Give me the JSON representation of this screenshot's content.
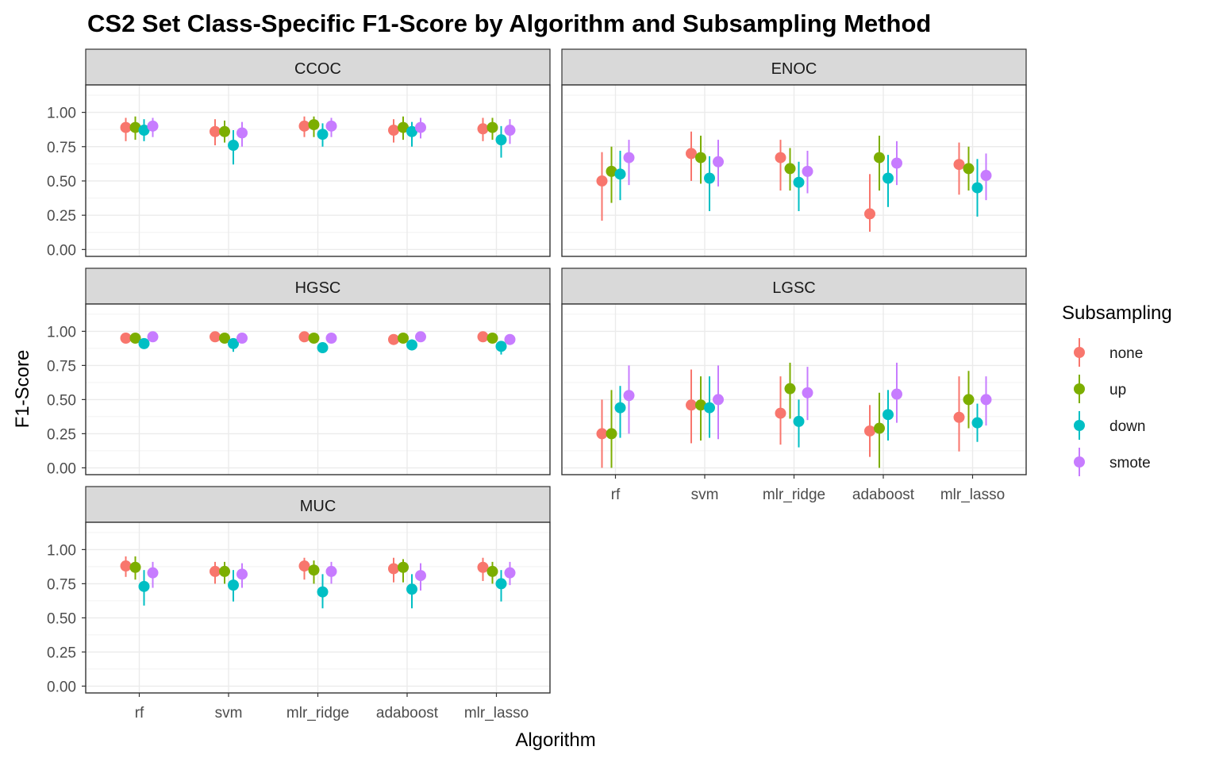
{
  "chart_data": {
    "type": "scatter",
    "title": "CS2 Set Class-Specific F1-Score by Algorithm and Subsampling Method",
    "xlabel": "Algorithm",
    "ylabel": "F1-Score",
    "categories": [
      "rf",
      "svm",
      "mlr_ridge",
      "adaboost",
      "mlr_lasso"
    ],
    "ylim": [
      0,
      1
    ],
    "y_ticks": [
      "0.00",
      "0.25",
      "0.50",
      "0.75",
      "1.00"
    ],
    "grid": true,
    "legend": {
      "title": "Subsampling",
      "position": "right",
      "items": [
        {
          "name": "none",
          "color": "#F8766D"
        },
        {
          "name": "up",
          "color": "#7CAE00"
        },
        {
          "name": "down",
          "color": "#00BFC4"
        },
        {
          "name": "smote",
          "color": "#C77CFF"
        }
      ]
    },
    "panels": [
      {
        "name": "CCOC",
        "series": [
          {
            "name": "none",
            "points": [
              [
                0.89,
                0.79,
                0.96
              ],
              [
                0.86,
                0.76,
                0.95
              ],
              [
                0.9,
                0.82,
                0.97
              ],
              [
                0.87,
                0.78,
                0.95
              ],
              [
                0.88,
                0.79,
                0.96
              ]
            ]
          },
          {
            "name": "up",
            "points": [
              [
                0.89,
                0.8,
                0.97
              ],
              [
                0.86,
                0.78,
                0.94
              ],
              [
                0.91,
                0.82,
                0.97
              ],
              [
                0.89,
                0.8,
                0.97
              ],
              [
                0.89,
                0.8,
                0.96
              ]
            ]
          },
          {
            "name": "down",
            "points": [
              [
                0.87,
                0.79,
                0.95
              ],
              [
                0.76,
                0.62,
                0.87
              ],
              [
                0.84,
                0.75,
                0.92
              ],
              [
                0.86,
                0.75,
                0.93
              ],
              [
                0.8,
                0.67,
                0.9
              ]
            ]
          },
          {
            "name": "smote",
            "points": [
              [
                0.9,
                0.82,
                0.96
              ],
              [
                0.85,
                0.75,
                0.93
              ],
              [
                0.9,
                0.82,
                0.96
              ],
              [
                0.89,
                0.81,
                0.96
              ],
              [
                0.87,
                0.77,
                0.95
              ]
            ]
          }
        ]
      },
      {
        "name": "ENOC",
        "series": [
          {
            "name": "none",
            "points": [
              [
                0.5,
                0.21,
                0.71
              ],
              [
                0.7,
                0.5,
                0.86
              ],
              [
                0.67,
                0.43,
                0.8
              ],
              [
                0.26,
                0.13,
                0.55
              ],
              [
                0.62,
                0.4,
                0.78
              ]
            ]
          },
          {
            "name": "up",
            "points": [
              [
                0.57,
                0.34,
                0.75
              ],
              [
                0.67,
                0.48,
                0.83
              ],
              [
                0.59,
                0.43,
                0.74
              ],
              [
                0.67,
                0.43,
                0.83
              ],
              [
                0.59,
                0.43,
                0.75
              ]
            ]
          },
          {
            "name": "down",
            "points": [
              [
                0.55,
                0.36,
                0.72
              ],
              [
                0.52,
                0.28,
                0.68
              ],
              [
                0.49,
                0.28,
                0.64
              ],
              [
                0.52,
                0.31,
                0.69
              ],
              [
                0.45,
                0.24,
                0.66
              ]
            ]
          },
          {
            "name": "smote",
            "points": [
              [
                0.67,
                0.47,
                0.8
              ],
              [
                0.64,
                0.46,
                0.8
              ],
              [
                0.57,
                0.41,
                0.72
              ],
              [
                0.63,
                0.47,
                0.79
              ],
              [
                0.54,
                0.36,
                0.7
              ]
            ]
          }
        ]
      },
      {
        "name": "HGSC",
        "series": [
          {
            "name": "none",
            "points": [
              [
                0.95,
                0.93,
                0.97
              ],
              [
                0.96,
                0.93,
                0.98
              ],
              [
                0.96,
                0.94,
                0.98
              ],
              [
                0.94,
                0.91,
                0.96
              ],
              [
                0.96,
                0.94,
                0.98
              ]
            ]
          },
          {
            "name": "up",
            "points": [
              [
                0.95,
                0.93,
                0.97
              ],
              [
                0.95,
                0.93,
                0.97
              ],
              [
                0.95,
                0.93,
                0.97
              ],
              [
                0.95,
                0.93,
                0.97
              ],
              [
                0.95,
                0.93,
                0.97
              ]
            ]
          },
          {
            "name": "down",
            "points": [
              [
                0.91,
                0.88,
                0.94
              ],
              [
                0.91,
                0.85,
                0.93
              ],
              [
                0.88,
                0.84,
                0.92
              ],
              [
                0.9,
                0.87,
                0.94
              ],
              [
                0.89,
                0.83,
                0.92
              ]
            ]
          },
          {
            "name": "smote",
            "points": [
              [
                0.96,
                0.93,
                0.97
              ],
              [
                0.95,
                0.93,
                0.97
              ],
              [
                0.95,
                0.93,
                0.97
              ],
              [
                0.96,
                0.93,
                0.98
              ],
              [
                0.94,
                0.92,
                0.96
              ]
            ]
          }
        ]
      },
      {
        "name": "LGSC",
        "series": [
          {
            "name": "none",
            "points": [
              [
                0.25,
                0.0,
                0.5
              ],
              [
                0.46,
                0.18,
                0.72
              ],
              [
                0.4,
                0.17,
                0.67
              ],
              [
                0.27,
                0.08,
                0.46
              ],
              [
                0.37,
                0.12,
                0.67
              ]
            ]
          },
          {
            "name": "up",
            "points": [
              [
                0.25,
                0.0,
                0.57
              ],
              [
                0.46,
                0.2,
                0.67
              ],
              [
                0.58,
                0.36,
                0.77
              ],
              [
                0.29,
                0.0,
                0.55
              ],
              [
                0.5,
                0.29,
                0.71
              ]
            ]
          },
          {
            "name": "down",
            "points": [
              [
                0.44,
                0.22,
                0.6
              ],
              [
                0.44,
                0.22,
                0.67
              ],
              [
                0.34,
                0.15,
                0.5
              ],
              [
                0.39,
                0.2,
                0.57
              ],
              [
                0.33,
                0.19,
                0.47
              ]
            ]
          },
          {
            "name": "smote",
            "points": [
              [
                0.53,
                0.25,
                0.75
              ],
              [
                0.5,
                0.21,
                0.75
              ],
              [
                0.55,
                0.35,
                0.74
              ],
              [
                0.54,
                0.33,
                0.77
              ],
              [
                0.5,
                0.31,
                0.67
              ]
            ]
          }
        ]
      },
      {
        "name": "MUC",
        "series": [
          {
            "name": "none",
            "points": [
              [
                0.88,
                0.8,
                0.95
              ],
              [
                0.84,
                0.75,
                0.91
              ],
              [
                0.88,
                0.78,
                0.94
              ],
              [
                0.86,
                0.76,
                0.94
              ],
              [
                0.87,
                0.77,
                0.94
              ]
            ]
          },
          {
            "name": "up",
            "points": [
              [
                0.87,
                0.78,
                0.95
              ],
              [
                0.84,
                0.75,
                0.91
              ],
              [
                0.85,
                0.75,
                0.92
              ],
              [
                0.87,
                0.76,
                0.93
              ],
              [
                0.84,
                0.75,
                0.91
              ]
            ]
          },
          {
            "name": "down",
            "points": [
              [
                0.73,
                0.59,
                0.85
              ],
              [
                0.74,
                0.62,
                0.85
              ],
              [
                0.69,
                0.57,
                0.82
              ],
              [
                0.71,
                0.57,
                0.82
              ],
              [
                0.75,
                0.62,
                0.85
              ]
            ]
          },
          {
            "name": "smote",
            "points": [
              [
                0.83,
                0.72,
                0.91
              ],
              [
                0.82,
                0.72,
                0.9
              ],
              [
                0.84,
                0.75,
                0.91
              ],
              [
                0.81,
                0.7,
                0.9
              ],
              [
                0.83,
                0.74,
                0.91
              ]
            ]
          }
        ]
      }
    ]
  }
}
